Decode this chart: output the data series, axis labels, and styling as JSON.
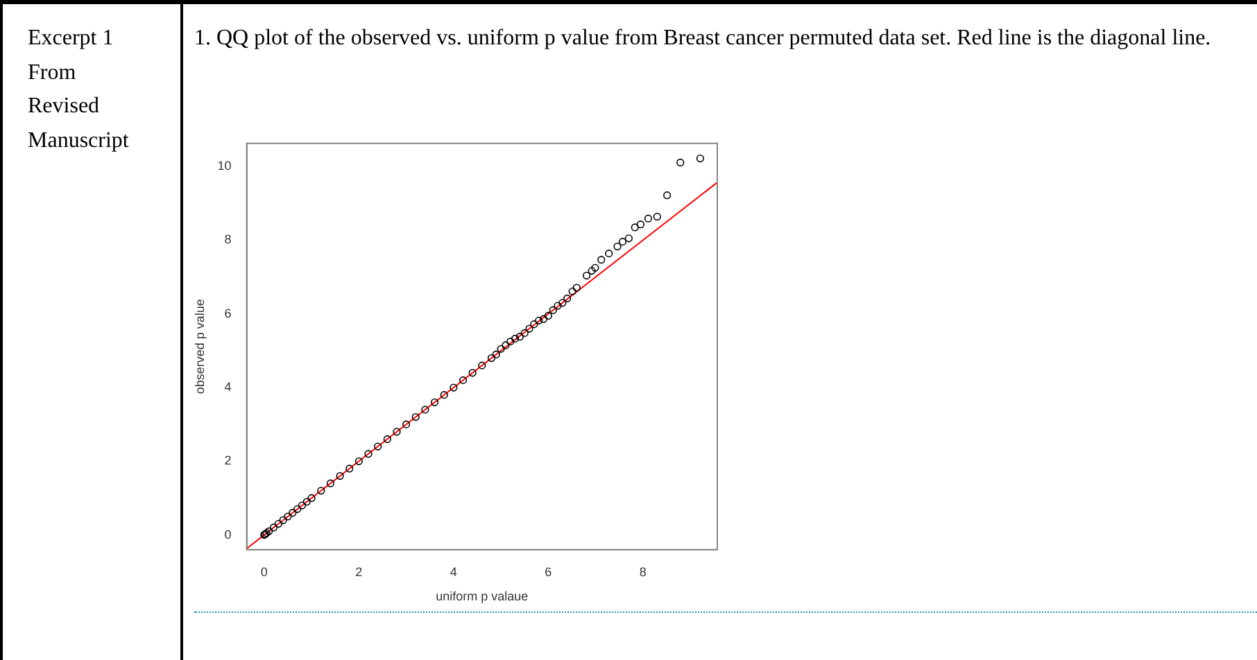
{
  "chart_data": {
    "type": "scatter",
    "title": "1. QQ plot of the observed vs. uniform p value from Breast cancer permuted data set. Red line is the diagonal line.",
    "annotations": [
      "Excerpt 1 From Revised Manuscript"
    ],
    "xlabel": "uniform p valaue",
    "ylabel": "observed p value",
    "xlim": [
      -0.37,
      9.57
    ],
    "ylim": [
      -0.4,
      10.63
    ],
    "xticks": [
      0,
      2,
      4,
      6,
      8
    ],
    "yticks": [
      0,
      2,
      4,
      6,
      8,
      10
    ],
    "grid": false,
    "series": [
      {
        "marker": "circle",
        "color": "#000000",
        "x": [
          0,
          0.02,
          0.05,
          0.1,
          0.2,
          0.3,
          0.4,
          0.5,
          0.6,
          0.7,
          0.8,
          0.9,
          1.0,
          1.2,
          1.4,
          1.6,
          1.8,
          2.0,
          2.2,
          2.4,
          2.6,
          2.8,
          3.0,
          3.2,
          3.4,
          3.6,
          3.8,
          4.0,
          4.2,
          4.4,
          4.6,
          4.8,
          4.9,
          5.0,
          5.1,
          5.2,
          5.3,
          5.4,
          5.5,
          5.6,
          5.7,
          5.8,
          5.9,
          6.0,
          6.1,
          6.2,
          6.3,
          6.4,
          6.51,
          6.6,
          6.81,
          6.92,
          6.99,
          7.12,
          7.28,
          7.46,
          7.57,
          7.7,
          7.83,
          7.95,
          8.11,
          8.3,
          8.51,
          8.79,
          9.21
        ],
        "values": [
          0,
          0.02,
          0.05,
          0.1,
          0.2,
          0.3,
          0.4,
          0.5,
          0.6,
          0.7,
          0.8,
          0.9,
          1.0,
          1.2,
          1.4,
          1.6,
          1.8,
          2.0,
          2.2,
          2.4,
          2.6,
          2.8,
          3.0,
          3.2,
          3.4,
          3.6,
          3.8,
          4.0,
          4.2,
          4.4,
          4.6,
          4.8,
          4.9,
          5.05,
          5.15,
          5.25,
          5.33,
          5.38,
          5.48,
          5.6,
          5.72,
          5.82,
          5.86,
          5.95,
          6.1,
          6.22,
          6.3,
          6.42,
          6.61,
          6.71,
          7.04,
          7.17,
          7.25,
          7.47,
          7.64,
          7.83,
          7.96,
          8.05,
          8.35,
          8.43,
          8.59,
          8.64,
          9.22,
          10.11,
          10.22
        ]
      },
      {
        "type": "line",
        "marker": "none",
        "color": "#ff0000",
        "x": [
          -0.37,
          9.57
        ],
        "values": [
          -0.37,
          9.57
        ]
      }
    ]
  }
}
